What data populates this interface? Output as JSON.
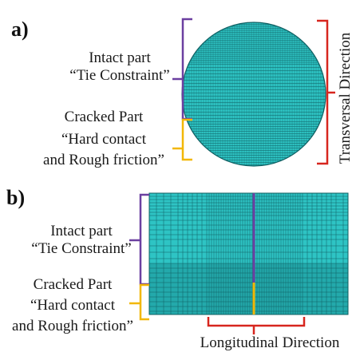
{
  "panel_a": {
    "letter": "a)",
    "intact": {
      "line1": "Intact part",
      "line2": "“Tie Constraint”"
    },
    "cracked": {
      "line1": "Cracked Part",
      "line2": "“Hard contact",
      "line3": "and Rough friction”"
    },
    "direction": "Transversal Direction"
  },
  "panel_b": {
    "letter": "b)",
    "intact": {
      "line1": "Intact part",
      "line2": "“Tie Constraint”"
    },
    "cracked": {
      "line1": "Cracked Part",
      "line2": "“Hard contact",
      "line3": "and Rough friction”"
    },
    "direction": "Longitudinal Direction"
  },
  "colors": {
    "mesh_fill": "#2ec4c4",
    "mesh_fill_dark": "#23a9ab",
    "mesh_line": "#0e5f62",
    "intact_bracket": "#6b3fa0",
    "cracked_bracket": "#f2b705",
    "direction_bracket": "#d7261e"
  }
}
